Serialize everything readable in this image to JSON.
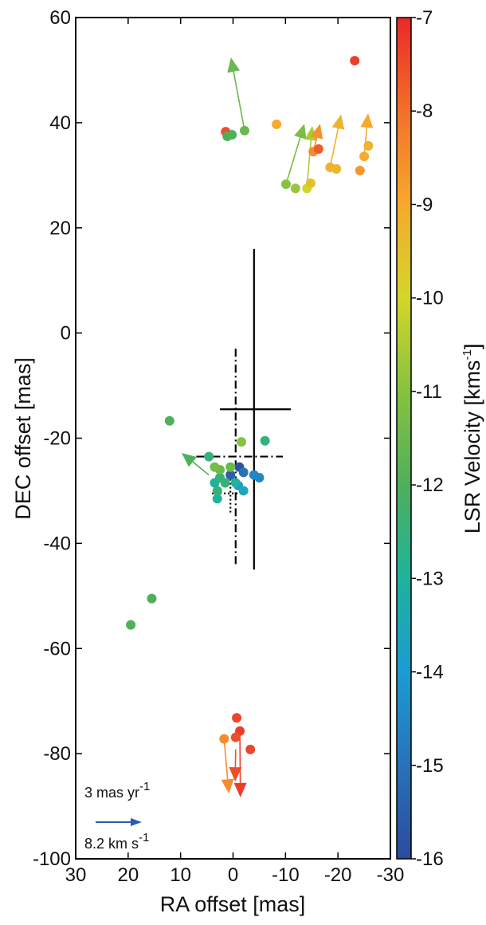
{
  "chart_data": {
    "type": "scatter",
    "x_label": "RA offset [mas]",
    "y_label": "DEC offset [mas]",
    "colorbar_label": {
      "text": "LSR Velocity [kms",
      "sup": "-1",
      "end": "]"
    },
    "xlim": [
      30,
      -30
    ],
    "xticks": [
      30,
      20,
      10,
      0,
      -10,
      -20,
      -30
    ],
    "ylim": [
      -100,
      60
    ],
    "yticks": [
      -100,
      -80,
      -60,
      -40,
      -20,
      0,
      20,
      40,
      60
    ],
    "clim": [
      -16,
      -7
    ],
    "cticks": [
      -16,
      -15,
      -14,
      -13,
      -12,
      -11,
      -10,
      -9,
      -8,
      -7
    ],
    "colormap": [
      "#2a4b9e",
      "#2872b8",
      "#1c9bd2",
      "#1fb29c",
      "#4fb05a",
      "#86c240",
      "#d3d52a",
      "#f6a92d",
      "#f2702b",
      "#e8292a"
    ],
    "points": {
      "x": [
        -23.2,
        1.4,
        1.1,
        0.2,
        -2.2,
        -8.3,
        -10.1,
        -11.9,
        -14.1,
        -14.8,
        -15.3,
        -16.3,
        -18.5,
        -19.7,
        -24.2,
        -25.0,
        -25.8,
        12.1,
        -1.6,
        -6.1,
        4.6,
        -1.2,
        0.5,
        -2.0,
        -4.0,
        -5.0,
        -1.0,
        -2.0,
        3.5,
        2.5,
        3.0,
        3.0,
        2.5,
        3.5,
        0.5,
        1.5,
        -0.5,
        15.5,
        19.5,
        -0.7,
        -1.3,
        -0.5,
        1.7,
        -3.3
      ],
      "y": [
        51.8,
        38.3,
        37.4,
        37.7,
        38.5,
        39.7,
        28.3,
        27.5,
        27.5,
        28.5,
        34.5,
        35.0,
        31.5,
        31.2,
        30.9,
        33.6,
        35.6,
        -16.7,
        -20.7,
        -20.5,
        -23.5,
        -25.5,
        -27.0,
        -26.5,
        -27.0,
        -27.5,
        -29.0,
        -30.0,
        -28.5,
        -27.5,
        -31.5,
        -30.0,
        -26.0,
        -25.5,
        -25.5,
        -28.5,
        -28.5,
        -50.5,
        -55.5,
        -73.2,
        -75.7,
        -76.9,
        -77.2,
        -79.2
      ],
      "v": [
        -7.3,
        -7.5,
        -12.0,
        -12.0,
        -11.5,
        -9.0,
        -11.0,
        -10.8,
        -10.0,
        -9.5,
        -8.5,
        -7.7,
        -9.2,
        -9.3,
        -8.7,
        -9.0,
        -9.2,
        -12.0,
        -11.0,
        -12.5,
        -12.5,
        -15.8,
        -15.5,
        -15.0,
        -14.5,
        -14.5,
        -14.0,
        -13.5,
        -13.0,
        -12.5,
        -13.0,
        -12.5,
        -11.5,
        -11.3,
        -11.5,
        -12.5,
        -13.0,
        -12.0,
        -12.0,
        -7.4,
        -7.3,
        -7.5,
        -8.5,
        -7.4
      ]
    },
    "arrows": {
      "x0": [
        -2.2,
        -10.1,
        -14.05,
        -15.3,
        -18.5,
        -25.0,
        4.6,
        1.7,
        -0.5,
        -1.3
      ],
      "y0": [
        38.5,
        28.3,
        27.5,
        34.5,
        31.5,
        33.6,
        -27.0,
        -77.2,
        -79.2,
        -76.2
      ],
      "x1": [
        0.4,
        -13.6,
        -15.1,
        -16.6,
        -20.6,
        -25.75,
        9.8,
        0.8,
        -0.4,
        -1.4
      ],
      "y1": [
        52.4,
        39.8,
        39.4,
        39.8,
        41.6,
        41.8,
        -22.8,
        -87.6,
        -85.3,
        -88.3
      ],
      "v": [
        -11.5,
        -11.2,
        -10.5,
        -8.6,
        -9.3,
        -9.0,
        -12.0,
        -8.5,
        -7.5,
        -7.3
      ]
    },
    "crosses": [
      {
        "style": "solid",
        "x": -4,
        "y": -14.5,
        "x_range": [
          2.5,
          -11
        ],
        "y_range": [
          16,
          -45
        ]
      },
      {
        "style": "dashdot",
        "x": -0.5,
        "y": -23.5,
        "x_range": [
          7,
          -9.5
        ],
        "y_range": [
          -3,
          -44
        ]
      },
      {
        "style": "dotted",
        "x": 0.5,
        "y": -30.5,
        "x_range": [
          4,
          -2
        ],
        "y_range": [
          -27,
          -34.5
        ]
      }
    ],
    "scale_labels": [
      {
        "text": "3 mas yr",
        "sup": "-1"
      },
      {
        "text": "8.2 km s",
        "sup": "-1"
      }
    ]
  }
}
